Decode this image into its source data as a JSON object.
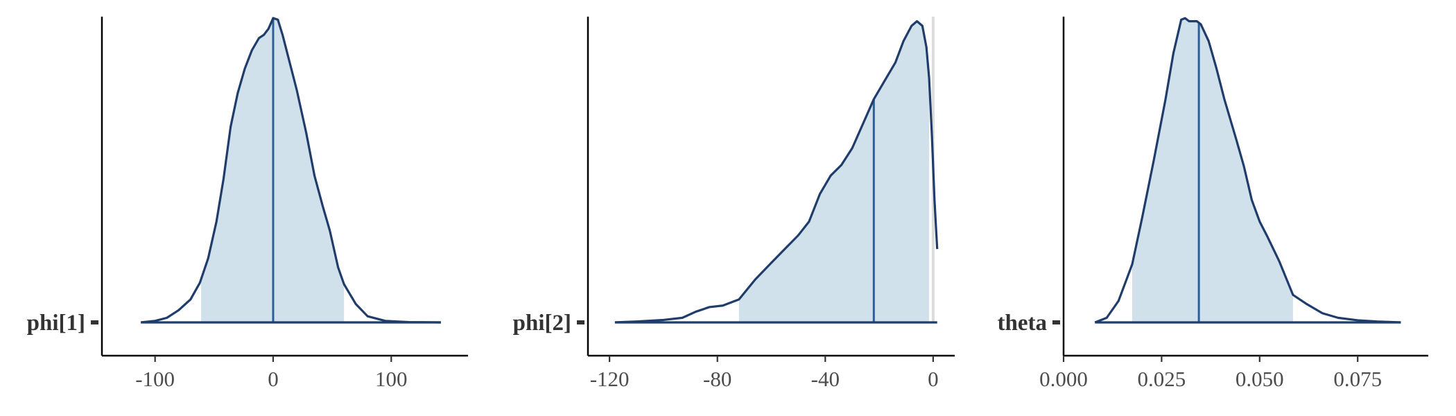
{
  "chart_data": [
    {
      "type": "area",
      "parameter": "phi[1]",
      "xlim": [
        -145,
        165
      ],
      "x_ticks": [
        -100,
        0,
        100
      ],
      "tick_labels": [
        "-100",
        "0",
        "100"
      ],
      "zero_line": true,
      "range": [
        -112,
        142
      ],
      "ci_interval": [
        -61,
        60
      ],
      "point_estimate": 0,
      "density": [
        [
          -112,
          0.0
        ],
        [
          -100,
          0.005
        ],
        [
          -90,
          0.015
        ],
        [
          -80,
          0.04
        ],
        [
          -70,
          0.075
        ],
        [
          -62,
          0.13
        ],
        [
          -55,
          0.21
        ],
        [
          -48,
          0.33
        ],
        [
          -42,
          0.47
        ],
        [
          -36,
          0.64
        ],
        [
          -30,
          0.75
        ],
        [
          -24,
          0.83
        ],
        [
          -18,
          0.89
        ],
        [
          -12,
          0.93
        ],
        [
          -8,
          0.94
        ],
        [
          -4,
          0.96
        ],
        [
          0,
          0.995
        ],
        [
          4,
          0.99
        ],
        [
          8,
          0.94
        ],
        [
          14,
          0.85
        ],
        [
          20,
          0.76
        ],
        [
          28,
          0.62
        ],
        [
          35,
          0.48
        ],
        [
          42,
          0.38
        ],
        [
          48,
          0.3
        ],
        [
          55,
          0.18
        ],
        [
          60,
          0.125
        ],
        [
          70,
          0.06
        ],
        [
          80,
          0.02
        ],
        [
          95,
          0.005
        ],
        [
          115,
          0.001
        ],
        [
          142,
          0.0
        ]
      ]
    },
    {
      "type": "area",
      "parameter": "phi[2]",
      "xlim": [
        -128,
        8
      ],
      "x_ticks": [
        -120,
        -80,
        -40,
        0
      ],
      "tick_labels": [
        "-120",
        "-80",
        "-40",
        "0"
      ],
      "zero_line": true,
      "range": [
        -118,
        1.5
      ],
      "ci_interval": [
        -72,
        -1.5
      ],
      "point_estimate": -22,
      "density": [
        [
          -118,
          0.0
        ],
        [
          -110,
          0.003
        ],
        [
          -100,
          0.008
        ],
        [
          -93,
          0.015
        ],
        [
          -88,
          0.035
        ],
        [
          -83,
          0.05
        ],
        [
          -78,
          0.055
        ],
        [
          -72,
          0.075
        ],
        [
          -66,
          0.14
        ],
        [
          -60,
          0.195
        ],
        [
          -55,
          0.24
        ],
        [
          -50,
          0.285
        ],
        [
          -46,
          0.33
        ],
        [
          -42,
          0.42
        ],
        [
          -38,
          0.48
        ],
        [
          -34,
          0.515
        ],
        [
          -30,
          0.57
        ],
        [
          -26,
          0.65
        ],
        [
          -22,
          0.73
        ],
        [
          -18,
          0.79
        ],
        [
          -14,
          0.85
        ],
        [
          -11,
          0.92
        ],
        [
          -8,
          0.97
        ],
        [
          -6,
          0.985
        ],
        [
          -4,
          0.97
        ],
        [
          -2.5,
          0.9
        ],
        [
          -1.5,
          0.8
        ],
        [
          -0.5,
          0.62
        ],
        [
          0.5,
          0.4
        ],
        [
          1.5,
          0.24
        ]
      ]
    },
    {
      "type": "area",
      "parameter": "theta",
      "xlim": [
        0.0,
        0.093
      ],
      "x_ticks": [
        0.0,
        0.025,
        0.05,
        0.075
      ],
      "tick_labels": [
        "0.000",
        "0.025",
        "0.050",
        "0.075"
      ],
      "zero_line": false,
      "range": [
        0.008,
        0.086
      ],
      "ci_interval": [
        0.0175,
        0.0585
      ],
      "point_estimate": 0.0345,
      "density": [
        [
          0.008,
          0.0
        ],
        [
          0.011,
          0.015
        ],
        [
          0.014,
          0.07
        ],
        [
          0.0175,
          0.19
        ],
        [
          0.02,
          0.34
        ],
        [
          0.023,
          0.53
        ],
        [
          0.026,
          0.73
        ],
        [
          0.028,
          0.88
        ],
        [
          0.03,
          0.99
        ],
        [
          0.031,
          0.995
        ],
        [
          0.032,
          0.985
        ],
        [
          0.034,
          0.985
        ],
        [
          0.035,
          0.975
        ],
        [
          0.037,
          0.92
        ],
        [
          0.039,
          0.83
        ],
        [
          0.041,
          0.73
        ],
        [
          0.044,
          0.6
        ],
        [
          0.046,
          0.51
        ],
        [
          0.048,
          0.4
        ],
        [
          0.05,
          0.33
        ],
        [
          0.052,
          0.28
        ],
        [
          0.055,
          0.2
        ],
        [
          0.0585,
          0.09
        ],
        [
          0.062,
          0.06
        ],
        [
          0.066,
          0.03
        ],
        [
          0.07,
          0.015
        ],
        [
          0.075,
          0.007
        ],
        [
          0.08,
          0.003
        ],
        [
          0.086,
          0.0
        ]
      ]
    }
  ],
  "colors": {
    "ci_fill": "#d1e1ec",
    "line": "#1f3c6b",
    "point_estimate": "#2d5f94",
    "zero_line": "#dcdcdc",
    "axis": "#000000"
  }
}
